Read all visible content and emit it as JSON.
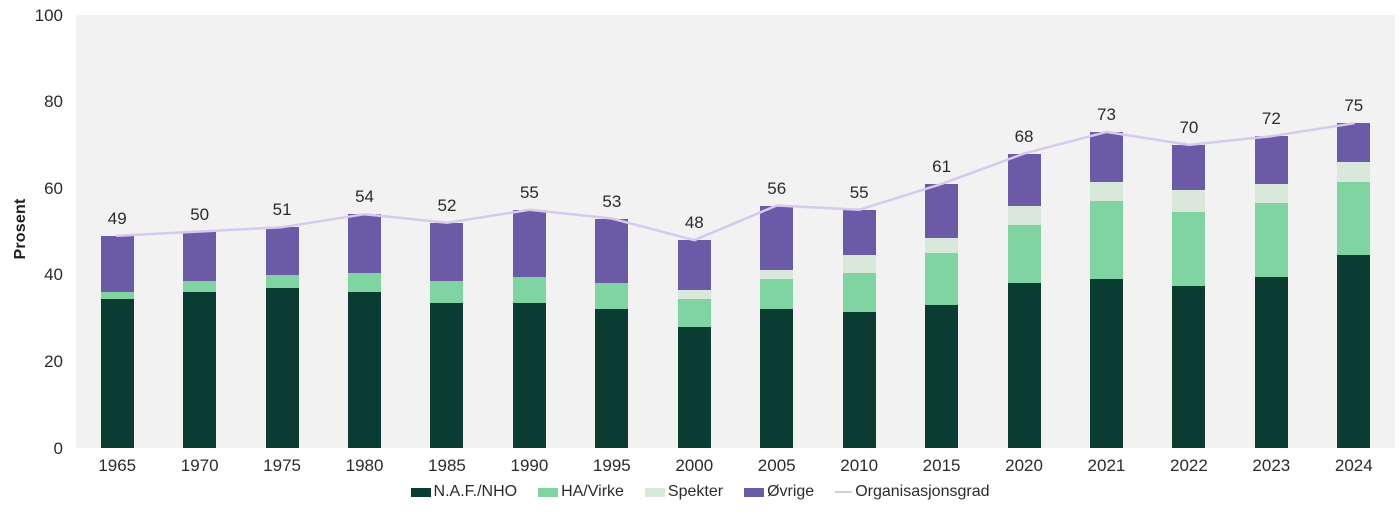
{
  "chart_data": {
    "type": "bar",
    "stacked": true,
    "ylabel": "Prosent",
    "ylim": [
      0,
      100
    ],
    "y_ticks": [
      0,
      20,
      40,
      60,
      80,
      100
    ],
    "grid": false,
    "plot_background": "#f2f2f2",
    "legend_position": "bottom-center",
    "categories": [
      "1965",
      "1970",
      "1975",
      "1980",
      "1985",
      "1990",
      "1995",
      "2000",
      "2005",
      "2010",
      "2015",
      "2020",
      "2021",
      "2022",
      "2023",
      "2024"
    ],
    "series": [
      {
        "name": "N.A.F./NHO",
        "color": "#0a3c31",
        "values": [
          34.5,
          36,
          37,
          36,
          33.5,
          33.5,
          32,
          28,
          32,
          31.5,
          33,
          38,
          39,
          37.5,
          39.5,
          44.5
        ]
      },
      {
        "name": "HA/Virke",
        "color": "#7fd4a2",
        "values": [
          1.5,
          2.5,
          3,
          4.5,
          5,
          6,
          6,
          6.5,
          7,
          9,
          12,
          13.5,
          18,
          17,
          17,
          17
        ]
      },
      {
        "name": "Spekter",
        "color": "#d9e8db",
        "values": [
          0,
          0,
          0,
          0,
          0,
          0,
          0,
          2,
          2,
          4,
          3.5,
          4.5,
          4.5,
          5,
          4.5,
          4.5
        ]
      },
      {
        "name": "Øvrige",
        "color": "#6b5ba7",
        "values": [
          13,
          11.5,
          11,
          13.5,
          13.5,
          15.5,
          15,
          11.5,
          15,
          10.5,
          12.5,
          12,
          11.5,
          10.5,
          11,
          9
        ]
      }
    ],
    "line_series": {
      "name": "Organisasjonsgrad",
      "color": "#d8c8ee",
      "values": [
        49,
        50,
        51,
        54,
        52,
        55,
        53,
        48,
        56,
        55,
        61,
        68,
        73,
        70,
        72,
        75
      ]
    },
    "bar_total_labels": [
      "49",
      "50",
      "51",
      "54",
      "52",
      "55",
      "53",
      "48",
      "56",
      "55",
      "61",
      "68",
      "73",
      "70",
      "72",
      "75"
    ]
  }
}
